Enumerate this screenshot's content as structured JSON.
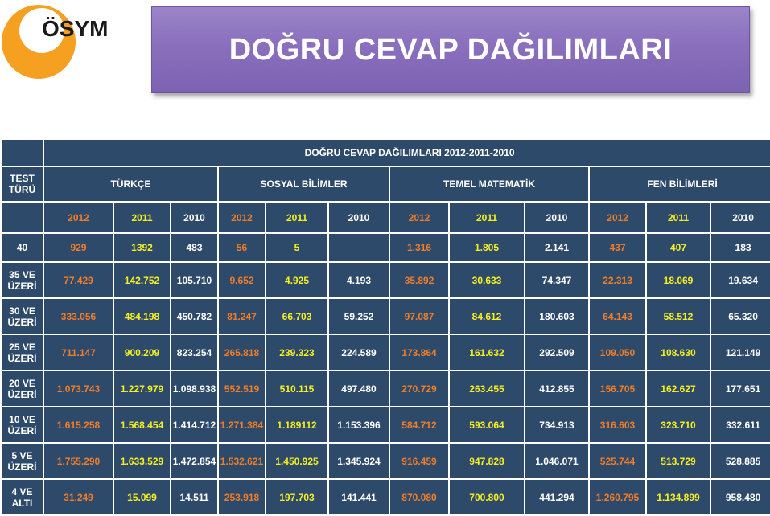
{
  "logo": {
    "text": "ÖSYM"
  },
  "banner": {
    "title": "DOĞRU CEVAP DAĞILIMLARI"
  },
  "table": {
    "title": "DOĞRU CEVAP DAĞILIMLARI  2012-2011-2010",
    "test_label_line1": "TEST",
    "test_label_line2": "TÜRÜ",
    "subjects": [
      "TÜRKÇE",
      "SOSYAL BİLİMLER",
      "TEMEL MATEMATİK",
      "FEN BİLİMLERİ"
    ],
    "years": [
      "2012",
      "2011",
      "2010"
    ],
    "rows": [
      {
        "label1": "40",
        "label2": "",
        "values": [
          "929",
          "1392",
          "483",
          "56",
          "5",
          "",
          "1.316",
          "1.805",
          "2.141",
          "437",
          "407",
          "183"
        ]
      },
      {
        "label1": "35 VE",
        "label2": "ÜZERİ",
        "values": [
          "77.429",
          "142.752",
          "105.710",
          "9.652",
          "4.925",
          "4.193",
          "35.892",
          "30.633",
          "74.347",
          "22.313",
          "18.069",
          "19.634"
        ]
      },
      {
        "label1": "30 VE",
        "label2": "ÜZERİ",
        "values": [
          "333.056",
          "484.198",
          "450.782",
          "81.247",
          "66.703",
          "59.252",
          "97.087",
          "84.612",
          "180.603",
          "64.143",
          "58.512",
          "65.320"
        ]
      },
      {
        "label1": "25 VE",
        "label2": "ÜZERİ",
        "values": [
          "711.147",
          "900.209",
          "823.254",
          "265.818",
          "239.323",
          "224.589",
          "173.864",
          "161.632",
          "292.509",
          "109.050",
          "108.630",
          "121.149"
        ]
      },
      {
        "label1": "20 VE",
        "label2": "ÜZERİ",
        "values": [
          "1.073.743",
          "1.227.979",
          "1.098.938",
          "552.519",
          "510.115",
          "497.480",
          "270.729",
          "263.455",
          "412.855",
          "156.705",
          "162.627",
          "177.651"
        ]
      },
      {
        "label1": "10 VE",
        "label2": "ÜZERİ",
        "values": [
          "1.615.258",
          "1.568.454",
          "1.414.712",
          "1.271.384",
          "1.189112",
          "1.153.396",
          "584.712",
          "593.064",
          "734.913",
          "316.603",
          "323.710",
          "332.611"
        ]
      },
      {
        "label1": "5 VE",
        "label2": "ÜZERİ",
        "values": [
          "1.755.290",
          "1.633.529",
          "1.472.854",
          "1.532.621",
          "1.450.925",
          "1.345.924",
          "916.459",
          "947.828",
          "1.046.071",
          "525.744",
          "513.729",
          "528.885"
        ]
      },
      {
        "label1": "4 VE",
        "label2": "ALTI",
        "values": [
          "31.249",
          "15.099",
          "14.511",
          "253.918",
          "197.703",
          "141.441",
          "870.080",
          "700.800",
          "441.294",
          "1.260.795",
          "1.134.899",
          "958.480"
        ]
      }
    ]
  },
  "colors": {
    "table_bg": "#2e4a6b",
    "year_2012": "#f07d28",
    "year_2011": "#f5f021",
    "year_2010": "#ffffff",
    "banner": "#8a6fbd",
    "logo_orange": "#f5a020"
  }
}
